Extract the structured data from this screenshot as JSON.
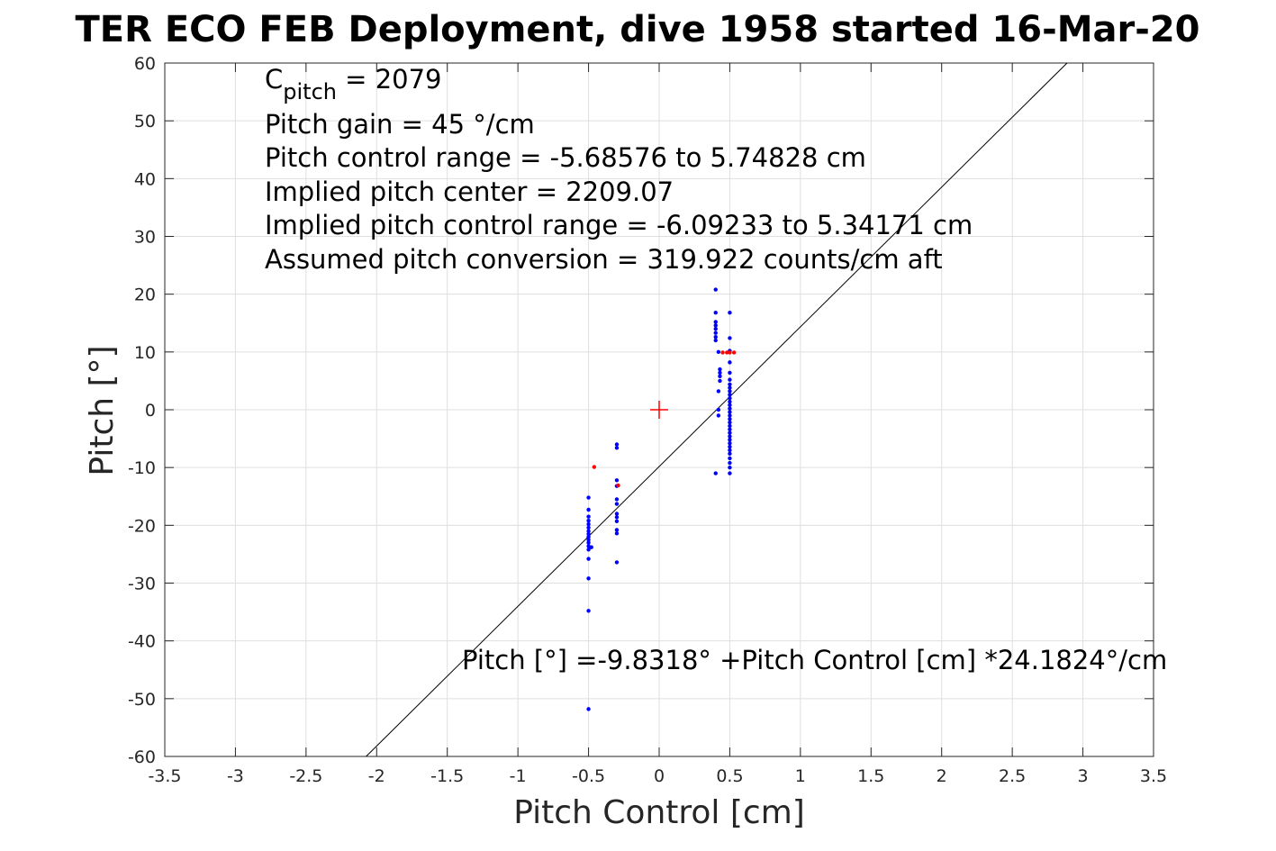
{
  "chart_data": {
    "type": "scatter",
    "title": "TER ECO FEB Deployment, dive 1958 started 16-Mar-20",
    "xlabel": "Pitch Control [cm]",
    "ylabel": "Pitch [°]",
    "xlim": [
      -3.5,
      3.5
    ],
    "ylim": [
      -60,
      60
    ],
    "grid": true,
    "x_ticks": [
      -3.5,
      -3,
      -2.5,
      -2,
      -1.5,
      -1,
      -0.5,
      0,
      0.5,
      1,
      1.5,
      2,
      2.5,
      3,
      3.5
    ],
    "x_tick_labels": [
      "-3.5",
      "-3",
      "-2.5",
      "-2",
      "-1.5",
      "-1",
      "-0.5",
      "0",
      "0.5",
      "1",
      "1.5",
      "2",
      "2.5",
      "3",
      "3.5"
    ],
    "y_ticks": [
      -60,
      -50,
      -40,
      -30,
      -20,
      -10,
      0,
      10,
      20,
      30,
      40,
      50,
      60
    ],
    "y_tick_labels": [
      "-60",
      "-50",
      "-40",
      "-30",
      "-20",
      "-10",
      "0",
      "10",
      "20",
      "30",
      "40",
      "50",
      "60"
    ],
    "annotations": {
      "c_pitch_base": "C",
      "c_pitch_sub": "pitch",
      "c_pitch_rest": " = 2079",
      "lines": [
        "Pitch gain = 45 °/cm",
        "Pitch control range = -5.68576 to 5.74828 cm",
        "Implied pitch center = 2209.07",
        "Implied pitch control range = -6.09233 to 5.34171 cm",
        "Assumed pitch conversion = 319.922 counts/cm aft"
      ],
      "fit_equation": "Pitch [°] =-9.8318° +Pitch Control [cm] *24.1824°/cm"
    },
    "fit_line": {
      "intercept": -9.8318,
      "slope": 24.1824,
      "color": "#000000"
    },
    "center_marker": {
      "x": 0,
      "y": 0,
      "color": "#ff0000",
      "shape": "plus"
    },
    "series": [
      {
        "color": "#0000ff",
        "points": [
          [
            -0.5,
            -15.2
          ],
          [
            -0.5,
            -17.3
          ],
          [
            -0.5,
            -18.5
          ],
          [
            -0.5,
            -19.2
          ],
          [
            -0.5,
            -19.8
          ],
          [
            -0.5,
            -20.4
          ],
          [
            -0.5,
            -21.0
          ],
          [
            -0.5,
            -21.5
          ],
          [
            -0.5,
            -22.0
          ],
          [
            -0.5,
            -22.5
          ],
          [
            -0.5,
            -23.0
          ],
          [
            -0.5,
            -23.6
          ],
          [
            -0.5,
            -24.2
          ],
          [
            -0.48,
            -23.8
          ],
          [
            -0.5,
            -25.8
          ],
          [
            -0.5,
            -29.2
          ],
          [
            -0.5,
            -34.8
          ],
          [
            -0.5,
            -51.8
          ],
          [
            -0.3,
            -6.0
          ],
          [
            -0.3,
            -6.6
          ],
          [
            -0.3,
            -12.2
          ],
          [
            -0.3,
            -13.2
          ],
          [
            -0.3,
            -15.5
          ],
          [
            -0.3,
            -16.3
          ],
          [
            -0.3,
            -18.0
          ],
          [
            -0.3,
            -18.6
          ],
          [
            -0.3,
            -19.3
          ],
          [
            -0.3,
            -20.8
          ],
          [
            -0.3,
            -21.4
          ],
          [
            -0.3,
            -26.4
          ],
          [
            0.4,
            20.8
          ],
          [
            0.4,
            16.8
          ],
          [
            0.4,
            15.2
          ],
          [
            0.4,
            14.6
          ],
          [
            0.4,
            14.0
          ],
          [
            0.4,
            13.3
          ],
          [
            0.4,
            12.6
          ],
          [
            0.4,
            12.0
          ],
          [
            0.43,
            7.0
          ],
          [
            0.43,
            6.4
          ],
          [
            0.43,
            5.8
          ],
          [
            0.43,
            5.0
          ],
          [
            0.42,
            3.2
          ],
          [
            0.42,
            10.0
          ],
          [
            0.42,
            0.0
          ],
          [
            0.42,
            -1.0
          ],
          [
            0.4,
            -11.0
          ],
          [
            0.5,
            16.8
          ],
          [
            0.5,
            12.4
          ],
          [
            0.5,
            10.2
          ],
          [
            0.5,
            8.2
          ],
          [
            0.5,
            6.4
          ],
          [
            0.5,
            5.2
          ],
          [
            0.5,
            4.4
          ],
          [
            0.5,
            3.8
          ],
          [
            0.5,
            3.2
          ],
          [
            0.5,
            2.6
          ],
          [
            0.5,
            2.0
          ],
          [
            0.5,
            1.4
          ],
          [
            0.5,
            0.8
          ],
          [
            0.5,
            0.2
          ],
          [
            0.5,
            -0.4
          ],
          [
            0.5,
            -1.0
          ],
          [
            0.5,
            -1.6
          ],
          [
            0.5,
            -2.2
          ],
          [
            0.5,
            -2.8
          ],
          [
            0.5,
            -3.4
          ],
          [
            0.5,
            -4.0
          ],
          [
            0.5,
            -4.6
          ],
          [
            0.5,
            -5.2
          ],
          [
            0.5,
            -5.8
          ],
          [
            0.5,
            -6.4
          ],
          [
            0.5,
            -7.0
          ],
          [
            0.5,
            -7.6
          ],
          [
            0.5,
            -8.4
          ],
          [
            0.5,
            -9.2
          ],
          [
            0.5,
            -10.0
          ],
          [
            0.5,
            -11.0
          ]
        ]
      },
      {
        "color": "#ff0000",
        "points": [
          [
            -0.46,
            -9.9
          ],
          [
            -0.29,
            -13.1
          ],
          [
            0.45,
            9.9
          ],
          [
            0.48,
            9.9
          ],
          [
            0.5,
            9.9
          ],
          [
            0.53,
            9.9
          ]
        ]
      }
    ]
  }
}
